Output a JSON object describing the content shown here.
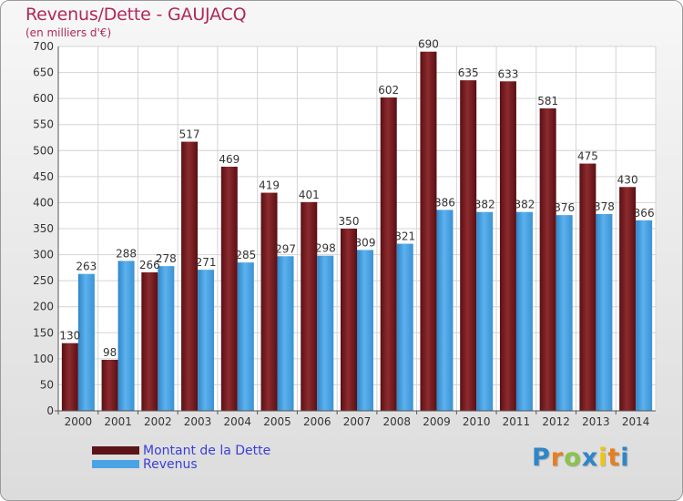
{
  "header": {
    "title": "Revenus/Dette - GAUJACQ",
    "subtitle": "(en milliers d'€)"
  },
  "chart_data": {
    "type": "bar",
    "title": "Revenus/Dette - GAUJACQ",
    "subtitle": "(en milliers d'€)",
    "xlabel": "",
    "ylabel": "",
    "ylim": [
      0,
      700
    ],
    "yticks": [
      0,
      50,
      100,
      150,
      200,
      250,
      300,
      350,
      400,
      450,
      500,
      550,
      600,
      650,
      700
    ],
    "grid": true,
    "legend_position": "bottom-left",
    "categories": [
      "2000",
      "2001",
      "2002",
      "2003",
      "2004",
      "2005",
      "2006",
      "2007",
      "2008",
      "2009",
      "2010",
      "2011",
      "2012",
      "2013",
      "2014"
    ],
    "series": [
      {
        "name": "Montant de la Dette",
        "color": "#7a1e22",
        "values": [
          130,
          98,
          266,
          517,
          469,
          419,
          401,
          350,
          602,
          690,
          635,
          633,
          581,
          475,
          430
        ]
      },
      {
        "name": "Revenus",
        "color": "#4aa3e3",
        "values": [
          263,
          288,
          278,
          271,
          285,
          297,
          298,
          309,
          321,
          386,
          382,
          382,
          376,
          378,
          366
        ]
      }
    ]
  },
  "legend": {
    "items": [
      {
        "label": "Montant de la Dette",
        "color": "#5c1418"
      },
      {
        "label": "Revenus",
        "color": "#4aa3e3"
      }
    ]
  },
  "logo": {
    "letters": [
      "P",
      "r",
      "o",
      "x",
      "i",
      "t",
      "i"
    ],
    "colors": [
      "#2e86c8",
      "#e67e22",
      "#8bc34a",
      "#2e86c8",
      "#f1c40f",
      "#e67e22",
      "#2e86c8"
    ]
  }
}
